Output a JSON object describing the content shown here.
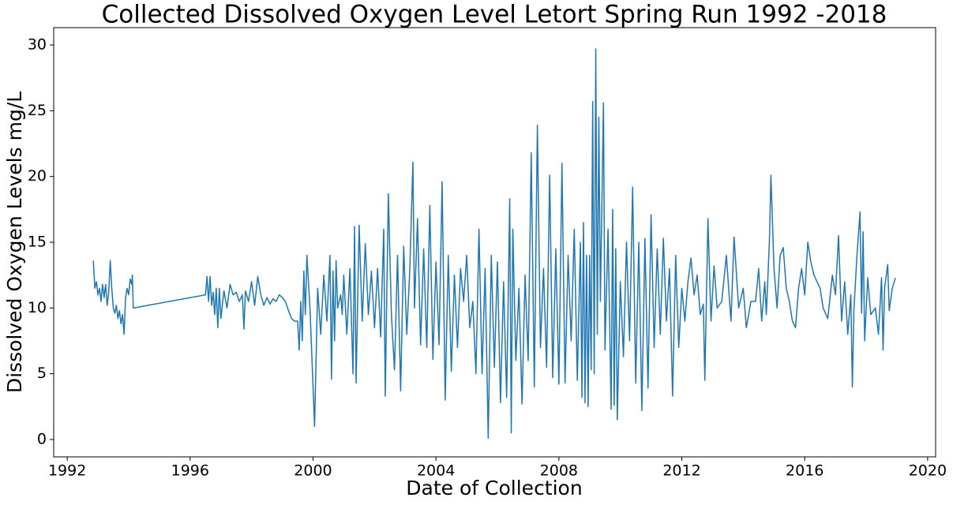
{
  "chart_data": {
    "type": "line",
    "title": "Collected Dissolved Oxygen Level Letort Spring Run 1992 -2018",
    "x_label": "Date of Collection",
    "y_label": "Dissolved Oxygen Levels mg/L",
    "xlim": [
      1991.56,
      2020.26
    ],
    "ylim": [
      -1.32,
      31.32
    ],
    "xticks": [
      1992,
      1996,
      2000,
      2004,
      2008,
      2012,
      2016,
      2020
    ],
    "yticks": [
      0,
      5,
      10,
      15,
      20,
      25,
      30
    ],
    "grid": false,
    "series": [
      {
        "color": "#1f77b4",
        "x": [
          1992.85,
          1992.9,
          1992.95,
          1993.0,
          1993.05,
          1993.1,
          1993.15,
          1993.2,
          1993.25,
          1993.3,
          1993.35,
          1993.4,
          1993.45,
          1993.5,
          1993.55,
          1993.6,
          1993.65,
          1993.7,
          1993.75,
          1993.8,
          1993.85,
          1993.9,
          1993.95,
          1994.0,
          1994.05,
          1994.1,
          1994.12,
          1994.15,
          1996.5,
          1996.55,
          1996.6,
          1996.65,
          1996.7,
          1996.75,
          1996.8,
          1996.85,
          1996.9,
          1996.95,
          1997.0,
          1997.1,
          1997.2,
          1997.3,
          1997.4,
          1997.5,
          1997.6,
          1997.7,
          1997.75,
          1997.8,
          1997.9,
          1998.0,
          1998.1,
          1998.2,
          1998.3,
          1998.4,
          1998.5,
          1998.6,
          1998.7,
          1998.8,
          1998.9,
          1999.0,
          1999.1,
          1999.2,
          1999.3,
          1999.4,
          1999.5,
          1999.55,
          1999.6,
          1999.65,
          1999.7,
          1999.75,
          1999.8,
          1999.9,
          2000.05,
          2000.15,
          2000.25,
          2000.35,
          2000.45,
          2000.55,
          2000.6,
          2000.65,
          2000.7,
          2000.75,
          2000.8,
          2000.9,
          2000.95,
          2001.0,
          2001.1,
          2001.2,
          2001.3,
          2001.35,
          2001.4,
          2001.5,
          2001.6,
          2001.7,
          2001.8,
          2001.9,
          2002.0,
          2002.1,
          2002.2,
          2002.3,
          2002.35,
          2002.45,
          2002.55,
          2002.65,
          2002.75,
          2002.85,
          2002.95,
          2003.05,
          2003.15,
          2003.25,
          2003.3,
          2003.4,
          2003.5,
          2003.6,
          2003.7,
          2003.8,
          2003.9,
          2004.0,
          2004.1,
          2004.2,
          2004.3,
          2004.4,
          2004.5,
          2004.6,
          2004.7,
          2004.8,
          2004.9,
          2005.0,
          2005.1,
          2005.2,
          2005.3,
          2005.4,
          2005.5,
          2005.6,
          2005.7,
          2005.8,
          2005.9,
          2006.0,
          2006.1,
          2006.2,
          2006.3,
          2006.4,
          2006.45,
          2006.5,
          2006.6,
          2006.7,
          2006.8,
          2006.9,
          2007.0,
          2007.1,
          2007.2,
          2007.3,
          2007.4,
          2007.5,
          2007.6,
          2007.7,
          2007.8,
          2007.9,
          2008.0,
          2008.1,
          2008.2,
          2008.3,
          2008.4,
          2008.5,
          2008.6,
          2008.7,
          2008.75,
          2008.8,
          2008.85,
          2008.9,
          2008.95,
          2009.0,
          2009.05,
          2009.1,
          2009.15,
          2009.2,
          2009.25,
          2009.3,
          2009.35,
          2009.45,
          2009.5,
          2009.6,
          2009.7,
          2009.75,
          2009.8,
          2009.85,
          2009.9,
          2010.0,
          2010.1,
          2010.2,
          2010.3,
          2010.4,
          2010.5,
          2010.6,
          2010.7,
          2010.8,
          2010.9,
          2011.0,
          2011.1,
          2011.2,
          2011.3,
          2011.4,
          2011.5,
          2011.6,
          2011.7,
          2011.8,
          2011.9,
          2012.0,
          2012.1,
          2012.2,
          2012.3,
          2012.4,
          2012.5,
          2012.6,
          2012.7,
          2012.75,
          2012.85,
          2012.95,
          2013.05,
          2013.15,
          2013.3,
          2013.45,
          2013.6,
          2013.7,
          2013.85,
          2014.0,
          2014.1,
          2014.25,
          2014.4,
          2014.5,
          2014.6,
          2014.7,
          2014.75,
          2014.85,
          2014.9,
          2015.0,
          2015.1,
          2015.2,
          2015.3,
          2015.4,
          2015.5,
          2015.6,
          2015.7,
          2015.8,
          2015.9,
          2016.0,
          2016.1,
          2016.2,
          2016.3,
          2016.5,
          2016.6,
          2016.75,
          2016.9,
          2017.0,
          2017.1,
          2017.2,
          2017.3,
          2017.4,
          2017.5,
          2017.55,
          2017.6,
          2017.7,
          2017.8,
          2017.85,
          2017.9,
          2017.95,
          2018.05,
          2018.15,
          2018.3,
          2018.4,
          2018.5,
          2018.55,
          2018.6,
          2018.7,
          2018.75,
          2018.85,
          2018.95
        ],
        "values": [
          13.6,
          11.5,
          12.0,
          11.0,
          11.5,
          10.5,
          11.8,
          10.8,
          11.8,
          10.2,
          11.2,
          13.6,
          11.5,
          10.0,
          9.6,
          10.2,
          9.2,
          9.8,
          8.8,
          9.5,
          8.0,
          10.8,
          11.5,
          11.0,
          12.2,
          11.8,
          12.5,
          10.0,
          11.0,
          12.4,
          10.5,
          12.4,
          10.2,
          11.2,
          9.5,
          11.5,
          8.5,
          11.5,
          9.2,
          11.3,
          10.0,
          11.8,
          11.0,
          11.2,
          10.5,
          11.0,
          8.4,
          11.3,
          10.5,
          12.0,
          10.2,
          12.4,
          11.0,
          10.2,
          10.8,
          10.3,
          10.7,
          10.5,
          11.0,
          10.8,
          10.5,
          9.8,
          9.2,
          9.0,
          9.0,
          6.8,
          10.5,
          7.5,
          12.8,
          9.5,
          14.0,
          10.0,
          1.0,
          11.5,
          8.0,
          12.5,
          9.0,
          14.0,
          4.6,
          12.8,
          7.5,
          13.6,
          10.0,
          11.0,
          9.5,
          12.5,
          8.0,
          13.0,
          5.0,
          16.2,
          4.3,
          16.3,
          9.0,
          14.9,
          9.5,
          12.8,
          8.5,
          13.0,
          7.8,
          16.0,
          3.3,
          18.7,
          9.5,
          5.3,
          14.0,
          3.7,
          14.7,
          8.0,
          13.0,
          21.1,
          10.0,
          16.8,
          7.2,
          14.5,
          7.0,
          17.8,
          6.1,
          13.5,
          7.2,
          19.6,
          3.0,
          14.0,
          5.2,
          12.5,
          7.0,
          13.0,
          10.5,
          14.0,
          8.5,
          10.5,
          5.0,
          16.0,
          5.0,
          13.0,
          0.1,
          14.0,
          5.5,
          13.5,
          2.8,
          12.0,
          3.2,
          18.3,
          0.5,
          16.0,
          6.0,
          11.5,
          2.7,
          12.5,
          6.0,
          21.8,
          4.0,
          23.9,
          7.0,
          13.0,
          5.5,
          20.1,
          4.7,
          14.5,
          4.2,
          21.0,
          4.3,
          14.0,
          7.5,
          16.0,
          4.5,
          15.0,
          3.2,
          16.5,
          2.8,
          14.0,
          2.5,
          14.0,
          5.3,
          25.7,
          5.0,
          29.7,
          8.0,
          24.5,
          10.5,
          25.6,
          6.8,
          16.0,
          2.3,
          17.5,
          2.6,
          14.5,
          1.5,
          12.0,
          6.3,
          15.0,
          7.5,
          19.2,
          4.3,
          15.0,
          2.2,
          15.3,
          3.9,
          17.1,
          7.0,
          14.5,
          8.0,
          15.3,
          9.0,
          13.0,
          3.3,
          14.0,
          7.0,
          11.5,
          9.0,
          12.0,
          13.8,
          11.0,
          12.5,
          9.5,
          10.3,
          4.5,
          16.8,
          9.0,
          13.2,
          10.0,
          10.5,
          14.0,
          9.0,
          15.4,
          10.0,
          11.5,
          8.5,
          10.5,
          10.5,
          13.0,
          9.0,
          12.0,
          9.5,
          15.0,
          20.1,
          13.0,
          10.0,
          14.0,
          14.6,
          11.5,
          10.5,
          9.0,
          8.5,
          11.5,
          13.0,
          11.0,
          15.0,
          13.5,
          12.5,
          11.5,
          10.0,
          9.2,
          12.5,
          11.0,
          15.5,
          9.0,
          12.0,
          8.0,
          11.0,
          4.0,
          9.8,
          14.0,
          17.3,
          9.6,
          15.8,
          7.5,
          12.3,
          9.5,
          10.0,
          8.0,
          12.3,
          6.8,
          11.5,
          13.3,
          9.8,
          11.5,
          12.3
        ]
      }
    ]
  }
}
